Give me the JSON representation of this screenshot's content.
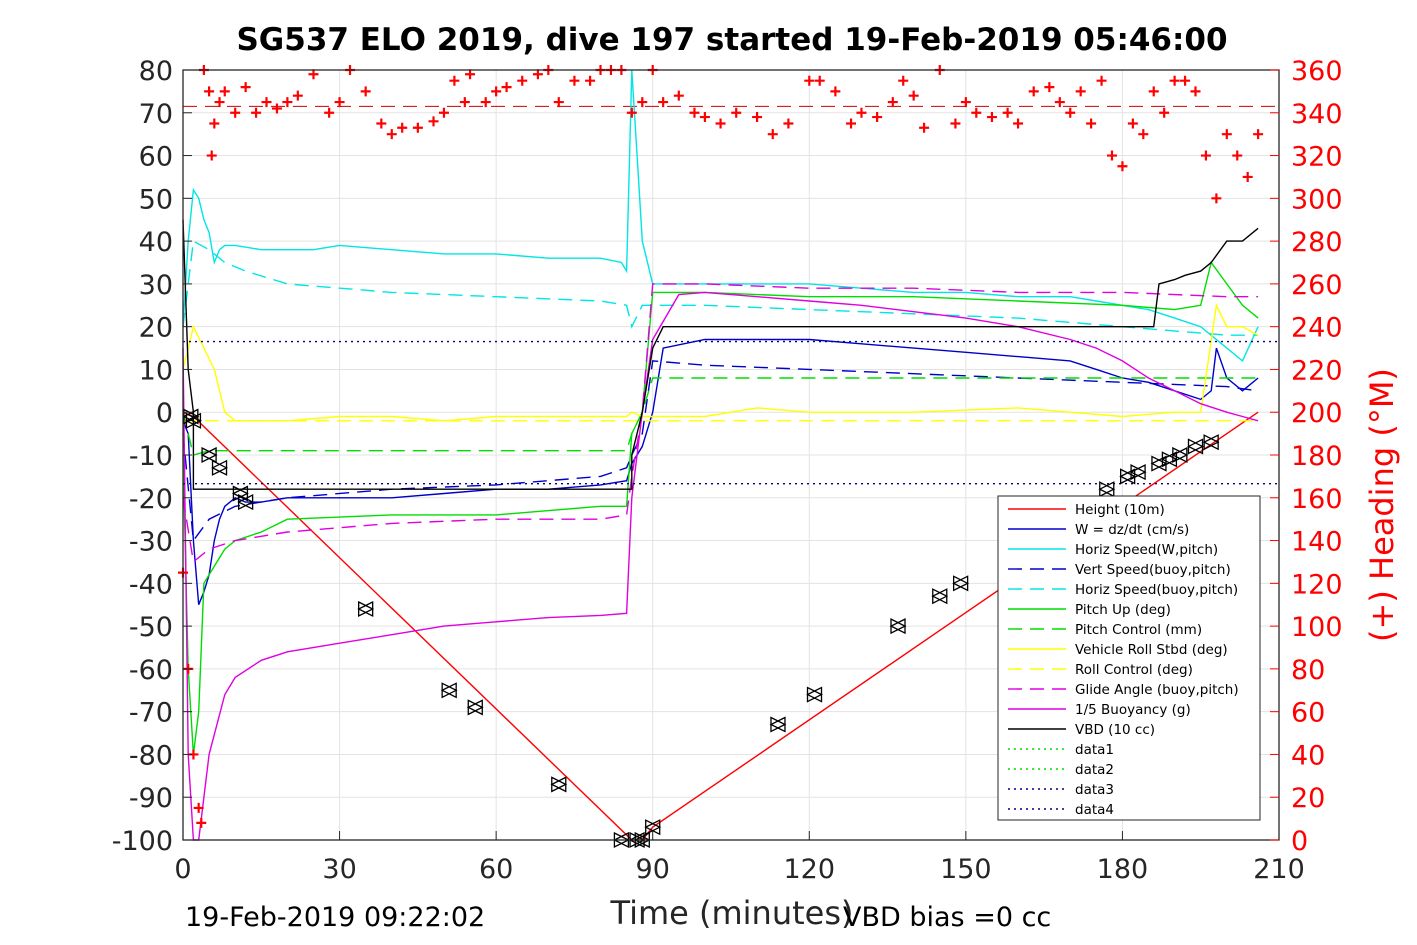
{
  "chart_data": {
    "type": "line",
    "title": "SG537 ELO 2019, dive 197 started 19-Feb-2019 05:46:00",
    "xlabel": "Time (minutes)",
    "ylabel_right": "(+) Heading (°M)",
    "xlim": [
      0,
      210
    ],
    "ylim": [
      -100,
      80
    ],
    "ylim_right": [
      0,
      360
    ],
    "xticks": [
      0,
      30,
      60,
      90,
      120,
      150,
      180,
      210
    ],
    "yticks": [
      -100,
      -90,
      -80,
      -70,
      -60,
      -50,
      -40,
      -30,
      -20,
      -10,
      0,
      10,
      20,
      30,
      40,
      50,
      60,
      70,
      80
    ],
    "yticks_right": [
      0,
      20,
      40,
      60,
      80,
      100,
      120,
      140,
      160,
      180,
      200,
      220,
      240,
      260,
      280,
      300,
      320,
      340,
      360
    ],
    "grid": true,
    "legend_position": "bottom-right",
    "footer_left": "19-Feb-2019 09:22:02",
    "footer_right": "VBD bias =0 cc",
    "colors": {
      "red": "#ff0000",
      "blue": "#0000cc",
      "cyan": "#00e5e5",
      "green": "#00dd00",
      "yellow": "#ffff00",
      "magenta": "#e000e0",
      "black": "#000000",
      "navy": "#000080"
    },
    "series": [
      {
        "name": "Height (10m)",
        "color": "#ff0000",
        "style": "solid",
        "x": [
          0,
          2,
          86,
          88,
          90,
          206
        ],
        "y": [
          0,
          -1,
          -100,
          -100,
          -97,
          0
        ]
      },
      {
        "name": "W = dz/dt (cm/s)",
        "color": "#0000cc",
        "style": "solid",
        "x": [
          0,
          1,
          2,
          3,
          4,
          5,
          6,
          7,
          8,
          10,
          12,
          15,
          20,
          30,
          40,
          50,
          60,
          70,
          80,
          85,
          86,
          88,
          90,
          92,
          100,
          110,
          120,
          130,
          140,
          150,
          160,
          170,
          175,
          180,
          185,
          190,
          195,
          197,
          198,
          200,
          203,
          206
        ],
        "y": [
          -2,
          -5,
          -30,
          -45,
          -42,
          -38,
          -30,
          -25,
          -22,
          -20,
          -21,
          -21,
          -20,
          -20,
          -20,
          -19,
          -18,
          -18,
          -17,
          -16,
          -12,
          -8,
          0,
          15,
          17,
          17,
          17,
          16,
          15,
          14,
          13,
          12,
          10,
          8,
          7,
          5,
          3,
          5,
          15,
          8,
          5,
          8
        ]
      },
      {
        "name": "Horiz Speed(W,pitch)",
        "color": "#00e5e5",
        "style": "solid",
        "x": [
          0,
          1,
          2,
          3,
          4,
          5,
          6,
          7,
          8,
          10,
          15,
          20,
          25,
          30,
          40,
          50,
          60,
          70,
          80,
          84,
          85,
          86,
          87,
          88,
          90,
          100,
          110,
          120,
          130,
          140,
          150,
          160,
          170,
          175,
          180,
          185,
          190,
          195,
          200,
          203,
          206
        ],
        "y": [
          20,
          40,
          52,
          50,
          45,
          42,
          35,
          38,
          39,
          39,
          38,
          38,
          38,
          39,
          38,
          37,
          37,
          36,
          36,
          35,
          33,
          80,
          60,
          40,
          30,
          30,
          30,
          30,
          29,
          28,
          28,
          27,
          27,
          26,
          25,
          24,
          22,
          20,
          15,
          12,
          20
        ]
      },
      {
        "name": "Vert Speed(buoy,pitch)",
        "color": "#0000cc",
        "style": "dashed",
        "x": [
          0,
          2,
          5,
          10,
          20,
          40,
          60,
          80,
          85,
          86,
          88,
          90,
          100,
          120,
          140,
          160,
          180,
          200,
          206
        ],
        "y": [
          -5,
          -30,
          -25,
          -22,
          -20,
          -18,
          -17,
          -15,
          -13,
          -10,
          -5,
          12,
          11,
          10,
          9,
          8,
          7,
          6,
          5
        ]
      },
      {
        "name": "Horiz Speed(buoy,pitch)",
        "color": "#00e5e5",
        "style": "dashed",
        "x": [
          0,
          2,
          5,
          8,
          12,
          20,
          40,
          60,
          80,
          85,
          86,
          88,
          90,
          100,
          120,
          140,
          160,
          180,
          200,
          206
        ],
        "y": [
          20,
          40,
          38,
          35,
          33,
          30,
          28,
          27,
          26,
          25,
          20,
          25,
          25,
          25,
          24,
          23,
          22,
          20,
          18,
          18
        ]
      },
      {
        "name": "Pitch Up (deg)",
        "color": "#00dd00",
        "style": "solid",
        "x": [
          0,
          1,
          2,
          3,
          4,
          5,
          8,
          10,
          15,
          20,
          40,
          60,
          80,
          85,
          86,
          88,
          90,
          100,
          120,
          140,
          160,
          180,
          190,
          195,
          197,
          200,
          203,
          206
        ],
        "y": [
          -10,
          -60,
          -80,
          -70,
          -40,
          -38,
          -32,
          -30,
          -28,
          -25,
          -24,
          -24,
          -22,
          -22,
          -5,
          0,
          28,
          28,
          27,
          27,
          26,
          25,
          24,
          25,
          35,
          30,
          25,
          22
        ]
      },
      {
        "name": "Pitch Control (mm)",
        "color": "#00dd00",
        "style": "dashed",
        "x": [
          0,
          2,
          5,
          10,
          85,
          86,
          88,
          90,
          206
        ],
        "y": [
          0,
          -10,
          -9,
          -9,
          -9,
          -5,
          0,
          8,
          8
        ]
      },
      {
        "name": "Vehicle Roll Stbd (deg)",
        "color": "#ffff00",
        "style": "solid",
        "x": [
          0,
          2,
          4,
          6,
          8,
          10,
          20,
          30,
          40,
          50,
          60,
          70,
          80,
          85,
          86,
          88,
          90,
          100,
          110,
          120,
          140,
          160,
          170,
          180,
          190,
          195,
          198,
          200,
          203,
          206
        ],
        "y": [
          10,
          20,
          15,
          10,
          0,
          -2,
          -2,
          -1,
          -1,
          -2,
          -1,
          -1,
          -1,
          -1,
          0,
          -1,
          -1,
          -1,
          1,
          0,
          0,
          1,
          0,
          -1,
          0,
          0,
          25,
          20,
          20,
          18
        ]
      },
      {
        "name": "Roll Control (deg)",
        "color": "#ffff00",
        "style": "dashed",
        "x": [
          0,
          2,
          5,
          85,
          86,
          88,
          90,
          206
        ],
        "y": [
          -2,
          -2,
          -2,
          -2,
          -2,
          -2,
          -2,
          -2
        ]
      },
      {
        "name": "Glide Angle (buoy,pitch)",
        "color": "#e000e0",
        "style": "dashed",
        "x": [
          0,
          2,
          5,
          10,
          20,
          40,
          60,
          80,
          85,
          86,
          88,
          90,
          100,
          120,
          140,
          160,
          180,
          200,
          206
        ],
        "y": [
          -20,
          -35,
          -32,
          -30,
          -28,
          -26,
          -25,
          -25,
          -24,
          -15,
          0,
          30,
          30,
          29,
          29,
          28,
          28,
          27,
          27
        ]
      },
      {
        "name": "1/5 Buoyancy (g)",
        "color": "#e000e0",
        "style": "solid",
        "x": [
          0,
          1,
          2,
          3,
          5,
          8,
          10,
          15,
          20,
          30,
          40,
          50,
          60,
          70,
          80,
          85,
          86,
          88,
          90,
          95,
          100,
          110,
          120,
          130,
          140,
          150,
          160,
          170,
          175,
          180,
          185,
          190,
          195,
          200,
          203,
          206
        ],
        "y": [
          15,
          -80,
          -100,
          -100,
          -80,
          -66,
          -62,
          -58,
          -56,
          -54,
          -52,
          -50,
          -49,
          -48,
          -47.5,
          -47,
          -20,
          0,
          17,
          27.5,
          28,
          27,
          26,
          25,
          23.5,
          22,
          20,
          17,
          15,
          12,
          8,
          5,
          2,
          0,
          -1,
          -2
        ]
      },
      {
        "name": "VBD (10 cc)",
        "color": "#000000",
        "style": "solid",
        "x": [
          0,
          1,
          2,
          2,
          86,
          86,
          88,
          90,
          92,
          186,
          187,
          190,
          192,
          195,
          197,
          200,
          203,
          206
        ],
        "y": [
          45,
          10,
          0,
          -18,
          -18,
          -10,
          0,
          15,
          20,
          20,
          30,
          31,
          32,
          33,
          35,
          40,
          40,
          43
        ]
      },
      {
        "name": "data1",
        "color": "#00dd00",
        "style": "dotted",
        "x": [],
        "y": []
      },
      {
        "name": "data2",
        "color": "#00dd00",
        "style": "dotted",
        "x": [],
        "y": []
      },
      {
        "name": "data3",
        "color": "#000080",
        "style": "dotted",
        "x": [
          0,
          210
        ],
        "y": [
          16.5,
          16.5
        ]
      },
      {
        "name": "data4",
        "color": "#000080",
        "style": "dotted",
        "x": [
          0,
          210
        ],
        "y": [
          -16.7,
          -16.7
        ]
      }
    ],
    "reference_lines": [
      {
        "axis": "right",
        "value": 343,
        "color": "#cc0000",
        "style": "dashed"
      }
    ],
    "heading_series": {
      "color": "#ff0000",
      "marker": "+",
      "x": [
        0,
        1,
        2,
        3,
        3.5,
        4,
        5,
        5.5,
        6,
        7,
        8,
        10,
        12,
        14,
        16,
        18,
        20,
        22,
        25,
        28,
        30,
        32,
        35,
        38,
        40,
        42,
        45,
        48,
        50,
        52,
        54,
        55,
        58,
        60,
        62,
        65,
        68,
        70,
        72,
        75,
        78,
        80,
        82,
        84,
        86,
        88,
        90,
        92,
        95,
        98,
        100,
        103,
        106,
        110,
        113,
        116,
        120,
        122,
        125,
        128,
        130,
        133,
        136,
        138,
        140,
        142,
        145,
        148,
        150,
        152,
        155,
        158,
        160,
        163,
        166,
        168,
        170,
        172,
        174,
        176,
        178,
        180,
        182,
        184,
        186,
        188,
        190,
        192,
        194,
        196,
        198,
        200,
        202,
        204,
        206
      ],
      "y": [
        125,
        80,
        40,
        15,
        8,
        360,
        350,
        320,
        335,
        345,
        350,
        340,
        352,
        340,
        345,
        342,
        345,
        348,
        358,
        340,
        345,
        360,
        350,
        335,
        330,
        333,
        333,
        336,
        340,
        355,
        345,
        358,
        345,
        350,
        352,
        355,
        358,
        360,
        345,
        355,
        355,
        360,
        360,
        360,
        340,
        345,
        360,
        345,
        348,
        340,
        338,
        335,
        340,
        338,
        330,
        335,
        355,
        355,
        350,
        335,
        340,
        338,
        345,
        355,
        348,
        333,
        360,
        335,
        345,
        340,
        338,
        340,
        335,
        350,
        352,
        345,
        340,
        350,
        335,
        355,
        320,
        315,
        335,
        330,
        350,
        340,
        355,
        355,
        350,
        320,
        300,
        330,
        320,
        310,
        330
      ]
    },
    "markers": {
      "shape": "triangle",
      "color": "#000000",
      "x": [
        1.5,
        2,
        5,
        7,
        11,
        12,
        35,
        51,
        56,
        72,
        84,
        87,
        88,
        90,
        114,
        121,
        137,
        145,
        149,
        177,
        181,
        183,
        187,
        189,
        191,
        194,
        197
      ],
      "y": [
        -1,
        -2,
        -10,
        -13,
        -19,
        -21,
        -46,
        -65,
        -69,
        -87,
        -100,
        -100,
        -100,
        -97,
        -73,
        -66,
        -50,
        -43,
        -40,
        -18,
        -15,
        -14,
        -12,
        -11,
        -10,
        -8,
        -7
      ]
    }
  }
}
